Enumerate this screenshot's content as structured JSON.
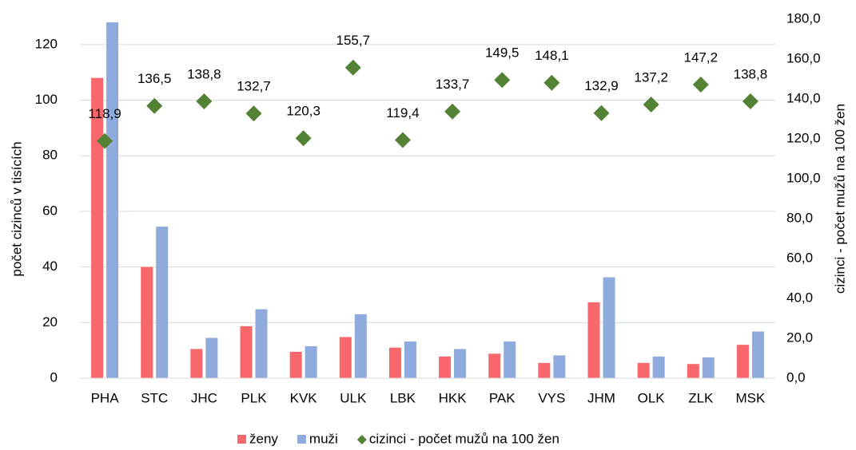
{
  "chart_data": {
    "type": "bar",
    "categories": [
      "PHA",
      "STC",
      "JHC",
      "PLK",
      "KVK",
      "ULK",
      "LBK",
      "HKK",
      "PAK",
      "VYS",
      "JHM",
      "OLK",
      "ZLK",
      "MSK"
    ],
    "series": [
      {
        "name": "ženy",
        "color": "#f8676b",
        "values": [
          108,
          40,
          10.5,
          18.7,
          9.5,
          14.8,
          11,
          7.8,
          8.8,
          5.5,
          27.3,
          5.5,
          5.1,
          12
        ]
      },
      {
        "name": "muži",
        "color": "#8faadc",
        "values": [
          128,
          54.5,
          14.5,
          24.8,
          11.5,
          23,
          13.2,
          10.5,
          13.2,
          8.2,
          36.3,
          7.8,
          7.5,
          16.8
        ]
      },
      {
        "name": "cizinci - počet mužů na 100 žen",
        "color": "#548235",
        "axis": "y2",
        "type": "scatter",
        "values": [
          118.9,
          136.5,
          138.8,
          132.7,
          120.3,
          155.7,
          119.4,
          133.7,
          149.5,
          148.1,
          132.9,
          137.2,
          147.2,
          138.8
        ],
        "value_labels": [
          "118,9",
          "136,5",
          "138,8",
          "132,7",
          "120,3",
          "155,7",
          "119,4",
          "133,7",
          "149,5",
          "148,1",
          "132,9",
          "137,2",
          "147,2",
          "138,8"
        ]
      }
    ],
    "ylabel": "počet cizinců v tisících",
    "y2label": "cizinci - počet mužů na 100 žen",
    "ylim": [
      0,
      130
    ],
    "yticks": [
      0,
      20,
      40,
      60,
      80,
      100,
      120
    ],
    "y2lim": [
      0,
      180
    ],
    "y2ticks": [
      {
        "value": 0,
        "label": "0,0"
      },
      {
        "value": 20,
        "label": "20,0"
      },
      {
        "value": 40,
        "label": "40,0"
      },
      {
        "value": 60,
        "label": "60,0"
      },
      {
        "value": 80,
        "label": "80,0"
      },
      {
        "value": 100,
        "label": "100,0"
      },
      {
        "value": 120,
        "label": "120,0"
      },
      {
        "value": 140,
        "label": "140,0"
      },
      {
        "value": 160,
        "label": "160,0"
      },
      {
        "value": 180,
        "label": "180,0"
      }
    ],
    "grid": true,
    "legend": "bottom"
  }
}
